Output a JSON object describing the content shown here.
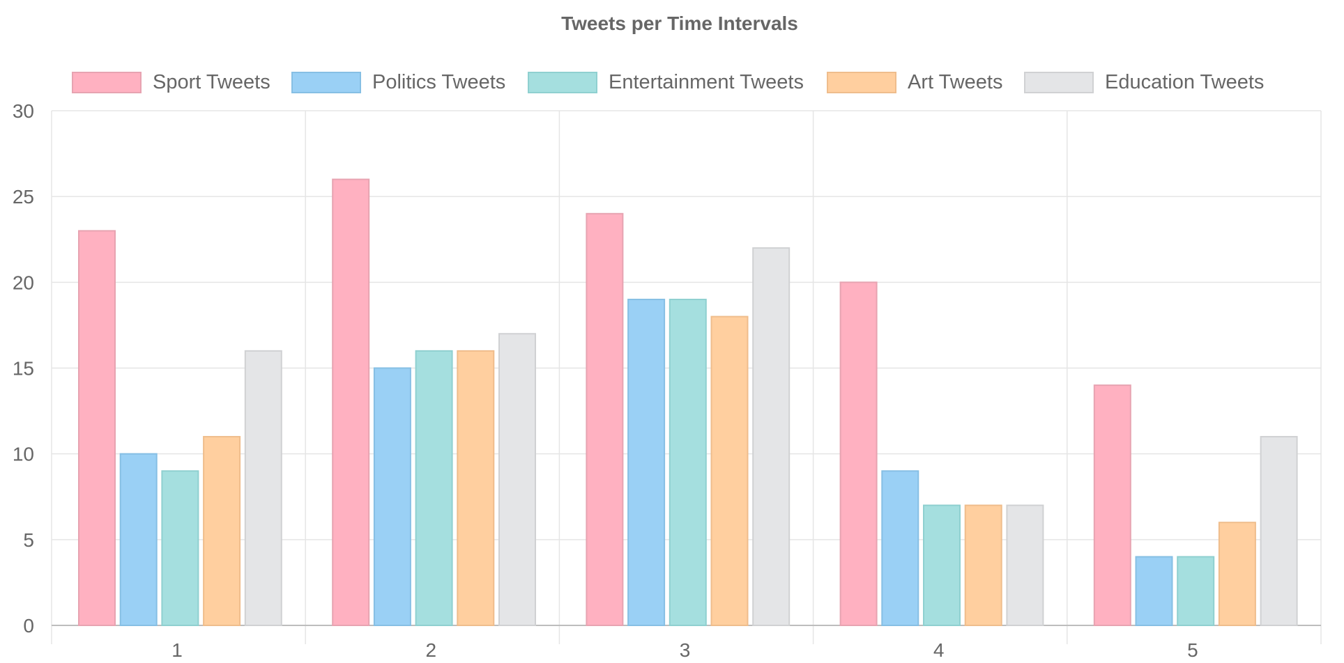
{
  "chart_data": {
    "type": "bar",
    "title": "Tweets per Time Intervals",
    "xlabel": "",
    "ylabel": "",
    "categories": [
      "1",
      "2",
      "3",
      "4",
      "5"
    ],
    "ylim": [
      0,
      30
    ],
    "yticks": [
      0,
      5,
      10,
      15,
      20,
      25,
      30
    ],
    "grid": true,
    "legend_position": "top",
    "series": [
      {
        "name": "Sport Tweets",
        "fill": "#ffb1c1",
        "stroke": "#e7a3b1",
        "values": [
          23,
          26,
          24,
          20,
          14
        ]
      },
      {
        "name": "Politics Tweets",
        "fill": "#9ad0f5",
        "stroke": "#86bfe4",
        "values": [
          10,
          15,
          19,
          9,
          4
        ]
      },
      {
        "name": "Entertainment Tweets",
        "fill": "#a5dfdf",
        "stroke": "#8fd0d0",
        "values": [
          9,
          16,
          19,
          7,
          4
        ]
      },
      {
        "name": "Art Tweets",
        "fill": "#ffcf9f",
        "stroke": "#efbd8c",
        "values": [
          11,
          16,
          18,
          7,
          6
        ]
      },
      {
        "name": "Education Tweets",
        "fill": "#e4e5e7",
        "stroke": "#d0d1d3",
        "values": [
          16,
          17,
          22,
          7,
          11
        ]
      }
    ]
  }
}
